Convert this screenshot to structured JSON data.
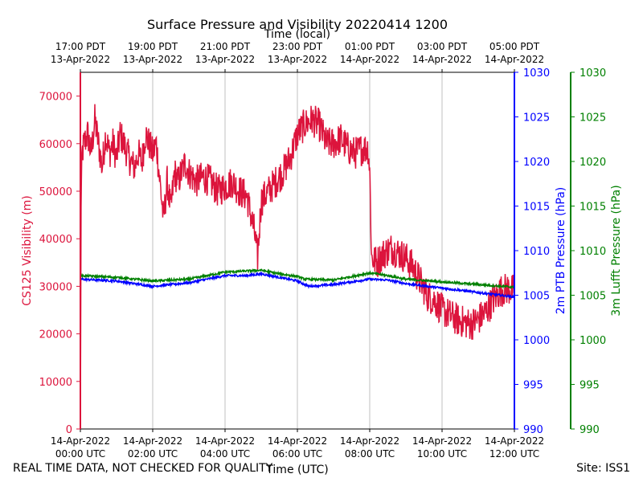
{
  "title": "Surface Pressure and Visibility 20220414 1200",
  "footer": {
    "disclaimer": "REAL TIME DATA, NOT CHECKED FOR QUALITY",
    "site": "Site: ISS1"
  },
  "colors": {
    "visibility": "#dc143c",
    "ptb": "#0000ff",
    "lufft": "#008000",
    "grid": "#b0b0b0",
    "axis": "#000000"
  },
  "chart_data": {
    "type": "line",
    "title": "Surface Pressure and Visibility 20220414 1200",
    "xlabel": "Time (UTC)",
    "xlabel_top": "Time (local)",
    "x_range_hours": [
      0,
      12
    ],
    "x_ticks_utc": [
      {
        "h": 0,
        "line1": "14-Apr-2022",
        "line2": "00:00 UTC"
      },
      {
        "h": 2,
        "line1": "14-Apr-2022",
        "line2": "02:00 UTC"
      },
      {
        "h": 4,
        "line1": "14-Apr-2022",
        "line2": "04:00 UTC"
      },
      {
        "h": 6,
        "line1": "14-Apr-2022",
        "line2": "06:00 UTC"
      },
      {
        "h": 8,
        "line1": "14-Apr-2022",
        "line2": "08:00 UTC"
      },
      {
        "h": 10,
        "line1": "14-Apr-2022",
        "line2": "10:00 UTC"
      },
      {
        "h": 12,
        "line1": "14-Apr-2022",
        "line2": "12:00 UTC"
      }
    ],
    "x_ticks_local": [
      {
        "h": 0,
        "line1": "17:00 PDT",
        "line2": "13-Apr-2022"
      },
      {
        "h": 2,
        "line1": "19:00 PDT",
        "line2": "13-Apr-2022"
      },
      {
        "h": 4,
        "line1": "21:00 PDT",
        "line2": "13-Apr-2022"
      },
      {
        "h": 6,
        "line1": "23:00 PDT",
        "line2": "13-Apr-2022"
      },
      {
        "h": 8,
        "line1": "01:00 PDT",
        "line2": "14-Apr-2022"
      },
      {
        "h": 10,
        "line1": "03:00 PDT",
        "line2": "14-Apr-2022"
      },
      {
        "h": 12,
        "line1": "05:00 PDT",
        "line2": "14-Apr-2022"
      }
    ],
    "grid_x": true,
    "axes": {
      "visibility": {
        "label": "CS125 Visibility (m)",
        "range": [
          0,
          75000
        ],
        "ticks": [
          "0",
          "10000",
          "20000",
          "30000",
          "40000",
          "50000",
          "60000",
          "70000"
        ],
        "tick_values": [
          0,
          10000,
          20000,
          30000,
          40000,
          50000,
          60000,
          70000
        ]
      },
      "ptb": {
        "label": "2m PTB Pressure (hPa)",
        "range": [
          990,
          1030
        ],
        "ticks": [
          "990",
          "995",
          "1000",
          "1005",
          "1010",
          "1015",
          "1020",
          "1025",
          "1030"
        ],
        "tick_values": [
          990,
          995,
          1000,
          1005,
          1010,
          1015,
          1020,
          1025,
          1030
        ]
      },
      "lufft": {
        "label": "3m Lufft Pressure (hPa)",
        "range": [
          990,
          1030
        ],
        "ticks": [
          "990",
          "995",
          "1000",
          "1005",
          "1010",
          "1015",
          "1020",
          "1025",
          "1030"
        ],
        "tick_values": [
          990,
          995,
          1000,
          1005,
          1010,
          1015,
          1020,
          1025,
          1030
        ]
      }
    },
    "series": [
      {
        "name": "CS125 Visibility",
        "axis": "visibility",
        "noise": 3500,
        "x": [
          0,
          0.02,
          0.05,
          0.1,
          0.2,
          0.3,
          0.4,
          0.5,
          0.6,
          0.7,
          0.8,
          0.9,
          1.0,
          1.1,
          1.2,
          1.3,
          1.4,
          1.5,
          1.6,
          1.7,
          1.8,
          1.9,
          2.0,
          2.1,
          2.2,
          2.3,
          2.4,
          2.5,
          2.6,
          2.7,
          2.8,
          2.9,
          3.0,
          3.1,
          3.2,
          3.4,
          3.6,
          3.8,
          4.0,
          4.2,
          4.4,
          4.6,
          4.8,
          4.9,
          5.0,
          5.2,
          5.4,
          5.6,
          5.8,
          6.0,
          6.2,
          6.4,
          6.6,
          6.8,
          7.0,
          7.2,
          7.4,
          7.6,
          7.8,
          7.95,
          8.0,
          8.05,
          8.2,
          8.4,
          8.6,
          8.8,
          9.0,
          9.2,
          9.4,
          9.6,
          9.8,
          10.0,
          10.2,
          10.4,
          10.6,
          10.8,
          11.0,
          11.2,
          11.4,
          11.6,
          11.8,
          12.0
        ],
        "values": [
          0,
          48000,
          58000,
          60000,
          62000,
          58000,
          65000,
          60000,
          55000,
          62000,
          58000,
          60000,
          57000,
          62000,
          60000,
          58000,
          56000,
          55000,
          58000,
          56000,
          62000,
          60000,
          58000,
          60000,
          52000,
          44000,
          52000,
          46000,
          54000,
          52000,
          54000,
          56000,
          54000,
          53000,
          52000,
          53000,
          52000,
          50000,
          51000,
          52000,
          50000,
          49000,
          42000,
          36000,
          48000,
          50000,
          52000,
          54000,
          57000,
          62000,
          64000,
          65000,
          64000,
          60000,
          60000,
          61000,
          59000,
          58000,
          59000,
          59000,
          55000,
          36000,
          35000,
          37000,
          38000,
          37000,
          36000,
          34000,
          31000,
          28000,
          27000,
          25000,
          24000,
          23000,
          22500,
          22000,
          23000,
          24500,
          27000,
          29000,
          29500,
          29000
        ]
      },
      {
        "name": "2m PTB Pressure",
        "axis": "ptb",
        "noise": 0.12,
        "x": [
          0,
          1.0,
          2.0,
          3.0,
          4.0,
          4.6,
          5.0,
          5.5,
          6.0,
          6.3,
          7.0,
          8.0,
          8.5,
          9.0,
          10.0,
          11.0,
          12.0
        ],
        "values": [
          1006.8,
          1006.6,
          1006.0,
          1006.4,
          1007.2,
          1007.2,
          1007.4,
          1007.0,
          1006.6,
          1006.0,
          1006.2,
          1006.8,
          1006.7,
          1006.3,
          1005.8,
          1005.3,
          1004.8
        ]
      },
      {
        "name": "3m Lufft Pressure",
        "axis": "lufft",
        "noise": 0.12,
        "x": [
          0,
          1.0,
          2.0,
          3.0,
          4.0,
          5.0,
          5.5,
          6.0,
          6.2,
          7.0,
          8.0,
          8.5,
          9.0,
          10.0,
          11.0,
          12.0
        ],
        "values": [
          1007.2,
          1007.0,
          1006.6,
          1006.8,
          1007.6,
          1007.8,
          1007.4,
          1007.1,
          1006.8,
          1006.7,
          1007.5,
          1007.2,
          1006.8,
          1006.5,
          1006.2,
          1005.9
        ]
      }
    ]
  }
}
